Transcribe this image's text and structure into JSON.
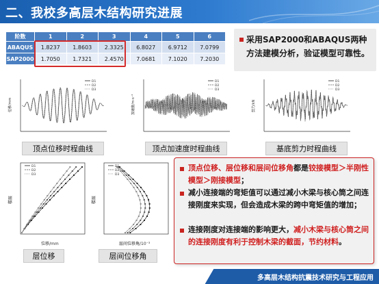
{
  "header": {
    "title": "二、我校多高层木结构研究进展"
  },
  "table": {
    "corner": "阶数",
    "columns": [
      "1",
      "2",
      "3",
      "4",
      "5",
      "6"
    ],
    "rows": [
      {
        "label": "ABAQUS",
        "values": [
          "1.8237",
          "1.8603",
          "2.3325",
          "6.8027",
          "6.9712",
          "7.0799"
        ]
      },
      {
        "label": "SAP2000",
        "values": [
          "1.7050",
          "1.7321",
          "2.4570",
          "7.0681",
          "7.1020",
          "7.2030"
        ]
      }
    ]
  },
  "note_top": {
    "text": "采用SAP2000和ABAQUS两种方法建模分析，验证模型可靠性。"
  },
  "captions": {
    "disp": "顶点位移时程曲线",
    "acc": "顶点加速度时程曲线",
    "shear": "基底剪力时程曲线",
    "story_disp": "层位移",
    "drift": "层间位移角"
  },
  "axes": {
    "disp_y": "位移/mm",
    "acc_y": "加速度/m·s⁻²",
    "shear_y": "剪力/kN",
    "story_x": "位移/mm",
    "story_y": "楼层",
    "drift_x": "层间位移角/10⁻³",
    "drift_y": "楼层"
  },
  "legend": [
    "D1",
    "D2",
    "D3"
  ],
  "note_bottom": {
    "p1_a": "顶点位移、层位移和层间位移角",
    "p1_b": "都是",
    "p1_c": "铰接模型＞半刚性模型＞刚接模型",
    "p1_d": "；",
    "p2": "减小连接端的弯矩值可以通过减小木梁与核心筒之间连接刚度来实现，但会造成木梁的跨中弯矩值的增加；",
    "p3_a": "连接刚度对连接端的影响更大，",
    "p3_b": "减小木梁与核心筒之间的连接刚度有利于控制木梁的截面，节约材料",
    "p3_c": "。"
  },
  "footer": {
    "text": "多高层木结构抗震技术研究与工程应用"
  },
  "colors": {
    "accent_red": "#d01f1f",
    "header_blue": "#1a5fb0"
  }
}
